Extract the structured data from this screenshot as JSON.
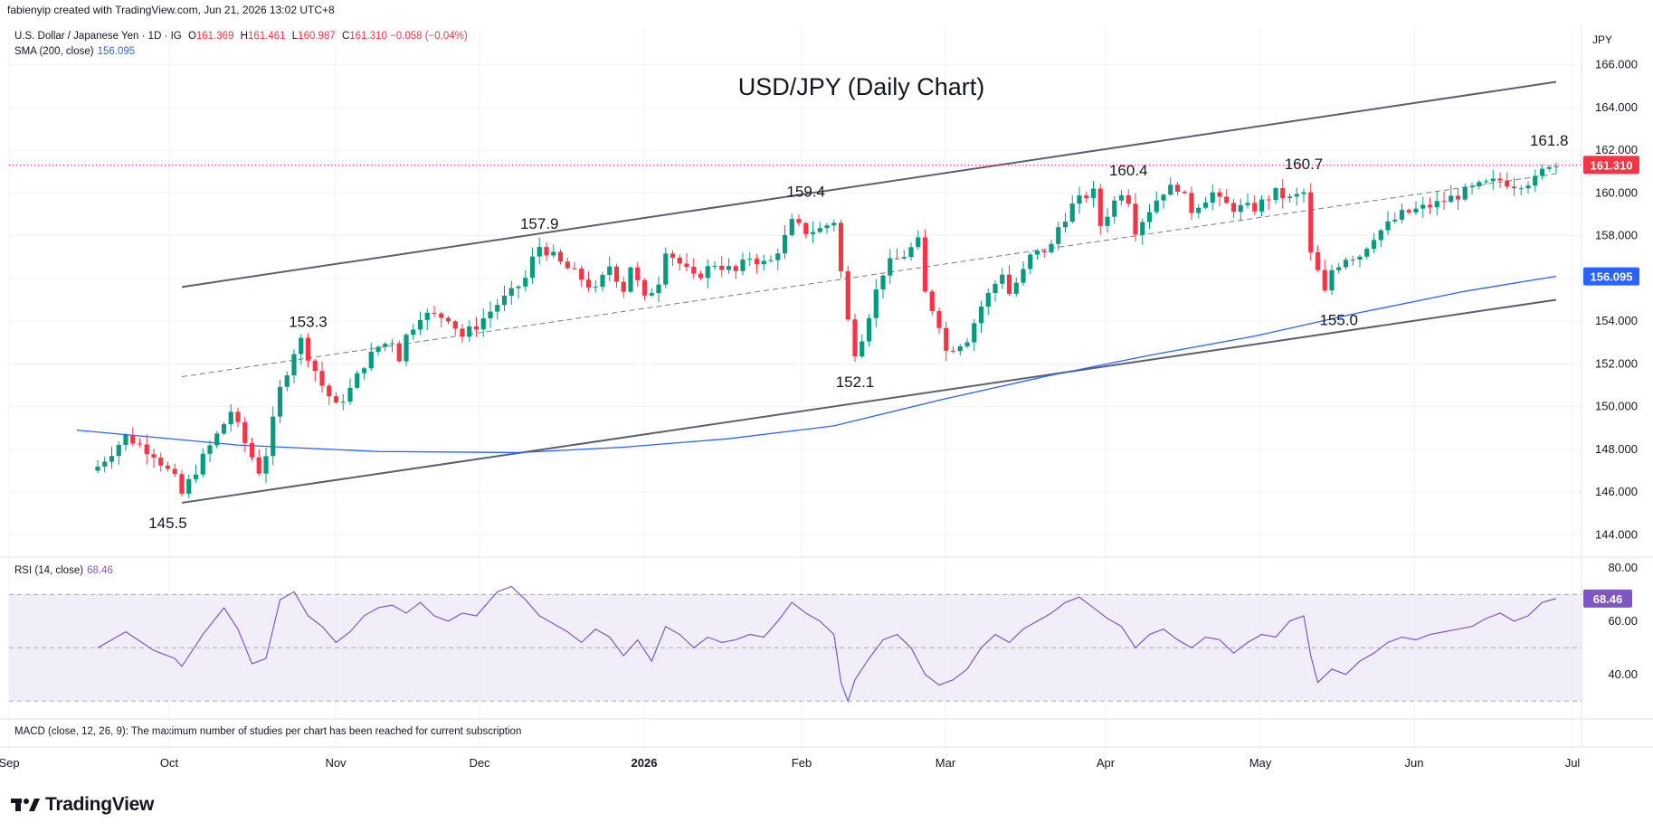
{
  "header": {
    "attribution": "fabienyip created with TradingView.com, Jun 21, 2026 13:02 UTC+8"
  },
  "legend": {
    "symbol": "U.S. Dollar / Japanese Yen · 1D · IG",
    "ohlc": [
      {
        "label": "O",
        "value": "161.369"
      },
      {
        "label": "H",
        "value": "161.461"
      },
      {
        "label": "L",
        "value": "160.987"
      },
      {
        "label": "C",
        "value": "161.310"
      }
    ],
    "change": "−0.058 (−0.04%)",
    "sma_label": "SMA (200, close)",
    "sma_value": "156.095",
    "rsi_label": "RSI (14, close)",
    "rsi_value": "68.46",
    "macd_note": "MACD (close, 12, 26, 9): The maximum number of studies per chart has been reached for current subscription"
  },
  "brand": {
    "name": "TradingView"
  },
  "colors": {
    "up": "#089981",
    "down": "#f23645",
    "sma": "#2962ff",
    "rsi": "#7e57c2",
    "channel": "#5d606b",
    "rsi_band": "#ede7f6",
    "grid": "#f0f3fa"
  },
  "chart_data": {
    "type": "candlestick",
    "title": "USD/JPY (Daily Chart)",
    "currency_label": "JPY",
    "x_ticks": [
      "Sep",
      "Oct",
      "Nov",
      "Dec",
      "2026",
      "Feb",
      "Mar",
      "Apr",
      "May",
      "Jun",
      "Jul"
    ],
    "y_ticks": [
      "166.000",
      "164.000",
      "162.000",
      "160.000",
      "158.000",
      "156.000",
      "154.000",
      "152.000",
      "150.000",
      "148.000",
      "146.000",
      "144.000"
    ],
    "ylim": [
      143,
      167
    ],
    "price_tags": [
      {
        "name": "last price",
        "value": "161.310",
        "color": "#f23645"
      },
      {
        "name": "SMA 200",
        "value": "156.095",
        "color": "#2962ff"
      }
    ],
    "annotations": [
      {
        "text": "145.5",
        "value": 145.5
      },
      {
        "text": "153.3",
        "value": 153.3
      },
      {
        "text": "157.9",
        "value": 157.9
      },
      {
        "text": "159.4",
        "value": 159.4
      },
      {
        "text": "152.1",
        "value": 152.1
      },
      {
        "text": "160.4",
        "value": 160.4
      },
      {
        "text": "160.7",
        "value": 160.7
      },
      {
        "text": "155.0",
        "value": 155.0
      },
      {
        "text": "161.8",
        "value": 161.8
      }
    ],
    "close_path": [
      [
        0,
        147.2
      ],
      [
        4,
        148.6
      ],
      [
        8,
        147.8
      ],
      [
        11,
        146.6
      ],
      [
        12,
        145.9
      ],
      [
        15,
        147.6
      ],
      [
        18,
        149.2
      ],
      [
        19,
        149.8
      ],
      [
        21,
        148.3
      ],
      [
        23,
        147.0
      ],
      [
        24,
        147.8
      ],
      [
        26,
        150.8
      ],
      [
        28,
        152.6
      ],
      [
        29,
        153.1
      ],
      [
        31,
        151.7
      ],
      [
        32,
        151.0
      ],
      [
        34,
        150.0
      ],
      [
        36,
        150.8
      ],
      [
        38,
        152.0
      ],
      [
        40,
        152.8
      ],
      [
        42,
        153.1
      ],
      [
        43,
        152.3
      ],
      [
        44,
        153.3
      ],
      [
        46,
        154.3
      ],
      [
        50,
        154.2
      ],
      [
        52,
        153.3
      ],
      [
        54,
        153.8
      ],
      [
        57,
        154.8
      ],
      [
        59,
        155.3
      ],
      [
        61,
        156.0
      ],
      [
        62,
        156.9
      ],
      [
        63,
        157.5
      ],
      [
        64,
        157.3
      ],
      [
        66,
        156.7
      ],
      [
        69,
        156.0
      ],
      [
        71,
        155.4
      ],
      [
        73,
        156.6
      ],
      [
        75,
        155.5
      ],
      [
        76,
        156.6
      ],
      [
        78,
        155.0
      ],
      [
        80,
        155.9
      ],
      [
        81,
        157.4
      ],
      [
        83,
        156.7
      ],
      [
        85,
        156.0
      ],
      [
        88,
        156.7
      ],
      [
        91,
        156.3
      ],
      [
        93,
        157.0
      ],
      [
        95,
        156.7
      ],
      [
        96,
        156.8
      ],
      [
        98,
        157.9
      ],
      [
        99,
        158.6
      ],
      [
        101,
        158.2
      ],
      [
        103,
        158.3
      ],
      [
        105,
        158.7
      ],
      [
        106,
        156.3
      ],
      [
        107,
        154.0
      ],
      [
        108,
        152.6
      ],
      [
        109,
        153.3
      ],
      [
        111,
        155.4
      ],
      [
        112,
        156.3
      ],
      [
        113,
        156.7
      ],
      [
        115,
        157.1
      ],
      [
        117,
        157.7
      ],
      [
        118,
        155.3
      ],
      [
        120,
        153.9
      ],
      [
        121,
        152.6
      ],
      [
        124,
        153.2
      ],
      [
        126,
        154.7
      ],
      [
        129,
        156.3
      ],
      [
        130,
        155.3
      ],
      [
        132,
        156.3
      ],
      [
        133,
        157.0
      ],
      [
        136,
        157.5
      ],
      [
        137,
        158.4
      ],
      [
        138,
        158.9
      ],
      [
        139,
        159.4
      ],
      [
        141,
        159.9
      ],
      [
        142,
        160.0
      ],
      [
        143,
        158.5
      ],
      [
        145,
        159.6
      ],
      [
        146,
        160.1
      ],
      [
        147,
        159.7
      ],
      [
        148,
        158.3
      ],
      [
        151,
        159.7
      ],
      [
        152,
        160.1
      ],
      [
        154,
        160.3
      ],
      [
        156,
        159.2
      ],
      [
        157,
        159.5
      ],
      [
        159,
        160.0
      ],
      [
        160,
        159.6
      ],
      [
        162,
        159.3
      ],
      [
        165,
        159.3
      ],
      [
        167,
        159.8
      ],
      [
        168,
        160.0
      ],
      [
        170,
        159.7
      ],
      [
        172,
        160.0
      ],
      [
        173,
        157.1
      ],
      [
        174,
        156.3
      ],
      [
        175,
        155.3
      ],
      [
        176,
        156.4
      ],
      [
        178,
        157.0
      ],
      [
        180,
        157.1
      ],
      [
        182,
        158.0
      ],
      [
        184,
        158.5
      ],
      [
        186,
        159.0
      ],
      [
        188,
        159.2
      ],
      [
        191,
        159.5
      ],
      [
        194,
        159.9
      ],
      [
        197,
        160.3
      ],
      [
        200,
        160.6
      ],
      [
        202,
        160.4
      ],
      [
        205,
        160.6
      ],
      [
        207,
        161.4
      ],
      [
        208,
        161.3
      ]
    ],
    "sma_200": [
      [
        -3,
        148.9
      ],
      [
        20,
        148.2
      ],
      [
        40,
        147.9
      ],
      [
        60,
        147.85
      ],
      [
        75,
        148.1
      ],
      [
        90,
        148.5
      ],
      [
        105,
        149.1
      ],
      [
        120,
        150.3
      ],
      [
        135,
        151.4
      ],
      [
        150,
        152.4
      ],
      [
        165,
        153.3
      ],
      [
        180,
        154.4
      ],
      [
        195,
        155.4
      ],
      [
        208,
        156.1
      ]
    ],
    "channel_upper": [
      [
        12,
        155.6
      ],
      [
        208,
        165.2
      ]
    ],
    "channel_lower": [
      [
        12,
        145.5
      ],
      [
        208,
        155.0
      ]
    ],
    "midline_dashed": [
      [
        12,
        151.4
      ],
      [
        208,
        160.9
      ]
    ],
    "rsi": {
      "ylim": [
        25,
        83
      ],
      "y_ticks": [
        "80.00",
        "60.00",
        "40.00"
      ],
      "bands": [
        30,
        70
      ],
      "mid": 50,
      "values": [
        [
          0,
          50
        ],
        [
          4,
          56
        ],
        [
          8,
          49
        ],
        [
          11,
          46
        ],
        [
          12,
          43
        ],
        [
          15,
          55
        ],
        [
          18,
          65
        ],
        [
          20,
          57
        ],
        [
          22,
          44
        ],
        [
          24,
          46
        ],
        [
          26,
          68
        ],
        [
          28,
          71
        ],
        [
          30,
          62
        ],
        [
          32,
          58
        ],
        [
          34,
          52
        ],
        [
          36,
          56
        ],
        [
          38,
          62
        ],
        [
          40,
          65
        ],
        [
          42,
          66
        ],
        [
          44,
          63
        ],
        [
          46,
          67
        ],
        [
          48,
          62
        ],
        [
          50,
          60
        ],
        [
          52,
          63
        ],
        [
          54,
          62
        ],
        [
          57,
          71
        ],
        [
          59,
          73
        ],
        [
          61,
          68
        ],
        [
          63,
          62
        ],
        [
          65,
          59
        ],
        [
          67,
          56
        ],
        [
          69,
          52
        ],
        [
          71,
          57
        ],
        [
          73,
          54
        ],
        [
          75,
          47
        ],
        [
          77,
          53
        ],
        [
          79,
          45
        ],
        [
          81,
          58
        ],
        [
          83,
          55
        ],
        [
          85,
          50
        ],
        [
          87,
          54
        ],
        [
          89,
          52
        ],
        [
          91,
          53
        ],
        [
          93,
          55
        ],
        [
          95,
          54
        ],
        [
          97,
          60
        ],
        [
          99,
          67
        ],
        [
          101,
          63
        ],
        [
          103,
          60
        ],
        [
          105,
          55
        ],
        [
          106,
          37
        ],
        [
          107,
          30
        ],
        [
          108,
          38
        ],
        [
          110,
          46
        ],
        [
          112,
          53
        ],
        [
          114,
          55
        ],
        [
          116,
          50
        ],
        [
          118,
          40
        ],
        [
          120,
          36
        ],
        [
          122,
          38
        ],
        [
          124,
          42
        ],
        [
          126,
          50
        ],
        [
          128,
          55
        ],
        [
          130,
          52
        ],
        [
          132,
          57
        ],
        [
          134,
          60
        ],
        [
          136,
          63
        ],
        [
          138,
          67
        ],
        [
          140,
          69
        ],
        [
          142,
          65
        ],
        [
          144,
          61
        ],
        [
          146,
          58
        ],
        [
          148,
          50
        ],
        [
          150,
          55
        ],
        [
          152,
          57
        ],
        [
          154,
          53
        ],
        [
          156,
          50
        ],
        [
          158,
          54
        ],
        [
          160,
          53
        ],
        [
          162,
          48
        ],
        [
          164,
          52
        ],
        [
          166,
          55
        ],
        [
          168,
          54
        ],
        [
          170,
          60
        ],
        [
          172,
          62
        ],
        [
          173,
          47
        ],
        [
          174,
          37
        ],
        [
          176,
          42
        ],
        [
          178,
          40
        ],
        [
          180,
          45
        ],
        [
          182,
          48
        ],
        [
          184,
          52
        ],
        [
          186,
          54
        ],
        [
          188,
          53
        ],
        [
          190,
          55
        ],
        [
          192,
          56
        ],
        [
          194,
          57
        ],
        [
          196,
          58
        ],
        [
          198,
          61
        ],
        [
          200,
          63
        ],
        [
          202,
          60
        ],
        [
          204,
          62
        ],
        [
          206,
          67
        ],
        [
          208,
          68.46
        ]
      ]
    }
  }
}
